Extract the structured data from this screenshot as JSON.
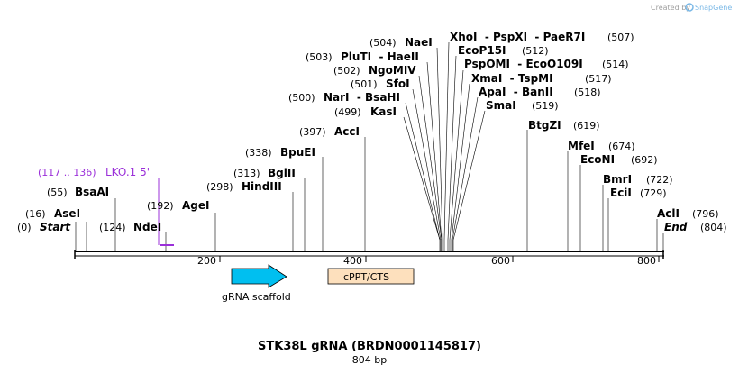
{
  "credit": {
    "prefix": "Created by",
    "brand": "SnapGene",
    "brand_color": "#7ab8e6"
  },
  "title": "STK38L gRNA (BRDN0001145817)",
  "subtitle": "804 bp",
  "backbone": {
    "length": 804,
    "ticks": [
      "200",
      "400",
      "600",
      "800"
    ]
  },
  "primer": {
    "range": "(117 .. 136)",
    "name": "LKO.1 5'",
    "color": "#9b30d9"
  },
  "features": {
    "grna_scaffold": {
      "label": "gRNA scaffold",
      "color": "#00bff0"
    },
    "cppt": {
      "label": "cPPT/CTS",
      "color": "#fde0bd"
    }
  },
  "sites": [
    {
      "pos": "(0)",
      "name": "Start",
      "style": "end"
    },
    {
      "pos": "(16)",
      "name": "AseI"
    },
    {
      "pos": "(55)",
      "name": "BsaAI"
    },
    {
      "pos": "(124)",
      "name": "NdeI"
    },
    {
      "pos": "(192)",
      "name": "AgeI"
    },
    {
      "pos": "(298)",
      "name": "HindIII"
    },
    {
      "pos": "(313)",
      "name": "BglII"
    },
    {
      "pos": "(338)",
      "name": "BpuEI"
    },
    {
      "pos": "(397)",
      "name": "AccI"
    },
    {
      "pos": "(499)",
      "name": "KasI"
    },
    {
      "pos": "(500)",
      "name": "NarI  - BsaHI"
    },
    {
      "pos": "(501)",
      "name": "SfoI"
    },
    {
      "pos": "(502)",
      "name": "NgoMIV"
    },
    {
      "pos": "(503)",
      "name": "PluTI  - HaeII"
    },
    {
      "pos": "(504)",
      "name": "NaeI"
    },
    {
      "pos": "(507)",
      "name": "XhoI  - PspXI  - PaeR7I"
    },
    {
      "pos": "(512)",
      "name": "EcoP15I"
    },
    {
      "pos": "(514)",
      "name": "PspOMI  - EcoO109I"
    },
    {
      "pos": "(517)",
      "name": "XmaI  - TspMI"
    },
    {
      "pos": "(518)",
      "name": "ApaI  - BanII"
    },
    {
      "pos": "(519)",
      "name": "SmaI"
    },
    {
      "pos": "(619)",
      "name": "BtgZI"
    },
    {
      "pos": "(674)",
      "name": "MfeI"
    },
    {
      "pos": "(692)",
      "name": "EcoNI"
    },
    {
      "pos": "(722)",
      "name": "BmrI"
    },
    {
      "pos": "(729)",
      "name": "EciI"
    },
    {
      "pos": "(796)",
      "name": "AclI"
    },
    {
      "pos": "(804)",
      "name": "End",
      "style": "end"
    }
  ]
}
